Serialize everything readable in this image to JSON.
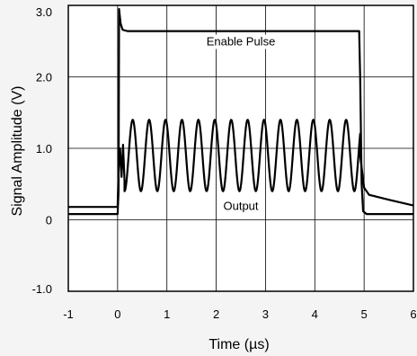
{
  "chart_data": {
    "type": "line",
    "title": "",
    "xlabel": "Time (µs)",
    "ylabel": "Signal Amplitude (V)",
    "xlim": [
      -1,
      6
    ],
    "ylim": [
      -1,
      3
    ],
    "x_ticks": [
      -1,
      0,
      1,
      2,
      3,
      4,
      5,
      6
    ],
    "x_tick_labels": [
      "-1",
      "0",
      "1",
      "2",
      "3",
      "4",
      "5",
      "6"
    ],
    "y_ticks": [
      -1,
      0,
      1,
      2,
      3
    ],
    "y_tick_labels": [
      "-1.0",
      "0",
      "1.0",
      "2.0",
      "3.0"
    ],
    "grid": true,
    "annotations": [
      {
        "text": "Enable Pulse",
        "x": 2.5,
        "y": 2.44
      },
      {
        "text": "Output",
        "x": 2.5,
        "y": 0.14
      }
    ],
    "series": [
      {
        "points": [
          [
            -1,
            0.08
          ],
          [
            0.0,
            0.08
          ],
          [
            0.02,
            0.4
          ],
          [
            0.03,
            2.95
          ],
          [
            0.06,
            2.75
          ],
          [
            0.1,
            2.66
          ],
          [
            0.2,
            2.64
          ],
          [
            4.9,
            2.64
          ],
          [
            4.92,
            2.0
          ],
          [
            4.95,
            0.5
          ],
          [
            4.98,
            0.12
          ],
          [
            5.05,
            0.08
          ],
          [
            6,
            0.08
          ]
        ]
      },
      {
        "settle_start": 0.0,
        "start_value": 0.18,
        "end_value": 0.18,
        "center": 0.9,
        "amplitude": 0.5,
        "period_us": 0.333,
        "num_peaks": 15,
        "cutoff_us": 4.92,
        "decay_tail": [
          [
            4.92,
            0.9
          ],
          [
            5.0,
            0.45
          ],
          [
            5.1,
            0.35
          ],
          [
            5.5,
            0.28
          ],
          [
            6,
            0.2
          ]
        ]
      }
    ]
  }
}
